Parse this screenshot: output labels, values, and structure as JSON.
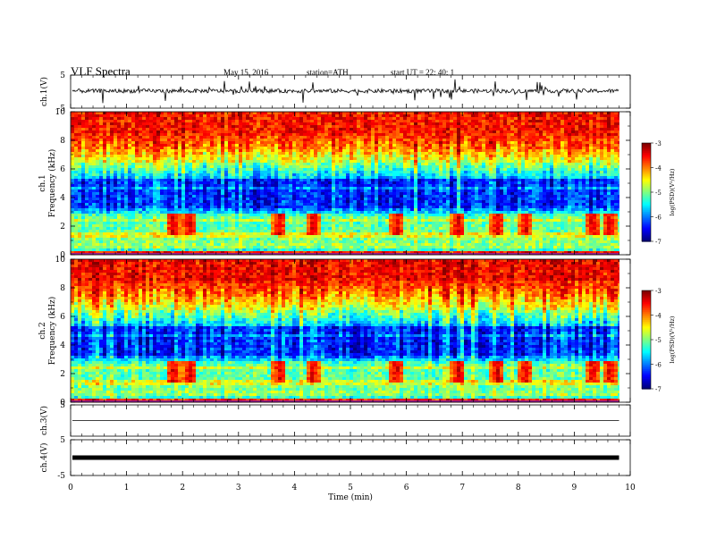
{
  "header": {
    "title": "VLF  Spectra",
    "date": "May 15, 2016",
    "station": "station=ATH",
    "start": "start  UT  =   22: 40: 1"
  },
  "chart_data": {
    "type": "heatmap",
    "title": "VLF  Spectra",
    "xlabel": "Time  (min)",
    "xlim": [
      0,
      10
    ],
    "x_ticks": [
      "0",
      "1",
      "2",
      "3",
      "4",
      "5",
      "6",
      "7",
      "8",
      "9",
      "10"
    ],
    "data_end_min": 9.8,
    "panels": [
      {
        "id": "ch1-waveform",
        "type": "line",
        "ylabel": "ch.1(V)",
        "ylim": [
          -5,
          5
        ],
        "y_ticks": [
          "5",
          "-5"
        ],
        "signal": "noisy trace near 0 V with frequent spikes"
      },
      {
        "id": "ch1-spectrogram",
        "type": "heatmap",
        "ylabel_channel": "ch.1",
        "ylabel": "Frequency  (kHz)",
        "ylim": [
          0,
          10
        ],
        "y_ticks": [
          "0",
          "2",
          "4",
          "6",
          "8",
          "10"
        ],
        "colorbar": {
          "label": "log(PSD)(V²/Hz)",
          "range": [
            -7,
            -3
          ],
          "ticks": [
            "-3",
            "-4",
            "-5",
            "-6",
            "-7"
          ],
          "colormap": "jet"
        },
        "bursts_min": [
          1.8,
          2.1,
          3.7,
          4.3,
          5.8,
          6.9,
          7.6,
          8.1,
          9.3,
          9.6
        ]
      },
      {
        "id": "ch2-spectrogram",
        "type": "heatmap",
        "ylabel_channel": "ch.2",
        "ylabel": "Frequency  (kHz)",
        "ylim": [
          0,
          10
        ],
        "y_ticks": [
          "0",
          "2",
          "4",
          "6",
          "8",
          "10"
        ],
        "colorbar": {
          "label": "log(PSD)(V²/Hz)",
          "range": [
            -7,
            -3
          ],
          "ticks": [
            "-3",
            "-4",
            "-5",
            "-6",
            "-7"
          ],
          "colormap": "jet"
        },
        "bursts_min": [
          1.8,
          2.1,
          3.7,
          4.3,
          5.8,
          6.9,
          7.6,
          8.1,
          9.3,
          9.6
        ]
      },
      {
        "id": "ch3-waveform",
        "type": "line",
        "ylabel": "ch.3(V)",
        "ylim": [
          -5,
          5
        ],
        "y_ticks": [
          "5"
        ],
        "signal": "flat near 0 V"
      },
      {
        "id": "ch4-waveform",
        "type": "line",
        "ylabel": "ch.4(V)",
        "ylim": [
          -5,
          5
        ],
        "y_ticks": [
          "5",
          "-5"
        ],
        "signal": "thick constant trace near 0 V"
      }
    ]
  }
}
